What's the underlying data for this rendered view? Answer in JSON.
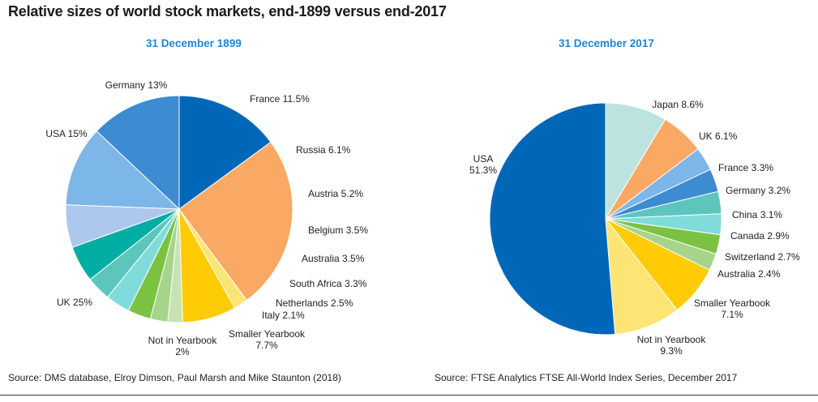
{
  "title": "Relative sizes of world stock markets, end-1899 versus end-2017",
  "colors": {
    "subtitle": "#1f86d6"
  },
  "chart_data": [
    {
      "type": "pie",
      "title": "31 December 1899",
      "source": "Source:  DMS database, Elroy Dimson, Paul Marsh and Mike Staunton (2018)",
      "slices": [
        {
          "label": "Germany 13%",
          "value": 13.0,
          "color": "#3d8bd0"
        },
        {
          "label": "France 11.5%",
          "value": 11.5,
          "color": "#7db6e9"
        },
        {
          "label": "Russia 6.1%",
          "value": 6.1,
          "color": "#adc8ec"
        },
        {
          "label": "Austria 5.2%",
          "value": 5.2,
          "color": "#00ada2"
        },
        {
          "label": "Belgium 3.5%",
          "value": 3.5,
          "color": "#5cc6bd"
        },
        {
          "label": "Australia 3.5%",
          "value": 3.5,
          "color": "#7fdcda"
        },
        {
          "label": "South Africa 3.3%",
          "value": 3.3,
          "color": "#7cc242"
        },
        {
          "label": "Netherlands 2.5%",
          "value": 2.5,
          "color": "#a6d58a"
        },
        {
          "label": "Italy 2.1%",
          "value": 2.1,
          "color": "#c7e3b3"
        },
        {
          "label": "Smaller Yearbook 7.7%",
          "value": 7.7,
          "color": "#ffcb05"
        },
        {
          "label": "Not in Yearbook 2%",
          "value": 2.0,
          "color": "#fde474"
        },
        {
          "label": "UK 25%",
          "value": 25.0,
          "color": "#f9a964"
        },
        {
          "label": "USA 15%",
          "value": 15.0,
          "color": "#0067b8"
        }
      ]
    },
    {
      "type": "pie",
      "title": "31 December 2017",
      "source": "Source: FTSE Analytics FTSE All-World Index Series, December 2017",
      "slices": [
        {
          "label": "Japan 8.6%",
          "value": 8.6,
          "color": "#bde3e1"
        },
        {
          "label": "UK 6.1%",
          "value": 6.1,
          "color": "#f9a964"
        },
        {
          "label": "France 3.3%",
          "value": 3.3,
          "color": "#7db6e9"
        },
        {
          "label": "Germany 3.2%",
          "value": 3.2,
          "color": "#3d8bd0"
        },
        {
          "label": "China 3.1%",
          "value": 3.1,
          "color": "#5cc6bd"
        },
        {
          "label": "Canada 2.9%",
          "value": 2.9,
          "color": "#7fdcda"
        },
        {
          "label": "Switzerland 2.7%",
          "value": 2.7,
          "color": "#7cc242"
        },
        {
          "label": "Australia 2.4%",
          "value": 2.4,
          "color": "#a6d58a"
        },
        {
          "label": "Smaller Yearbook 7.1%",
          "value": 7.1,
          "color": "#ffcb05"
        },
        {
          "label": "Not in Yearbook 9.3%",
          "value": 9.3,
          "color": "#fde474"
        },
        {
          "label": "USA 51.3%",
          "value": 51.3,
          "color": "#0067b8"
        }
      ]
    }
  ]
}
